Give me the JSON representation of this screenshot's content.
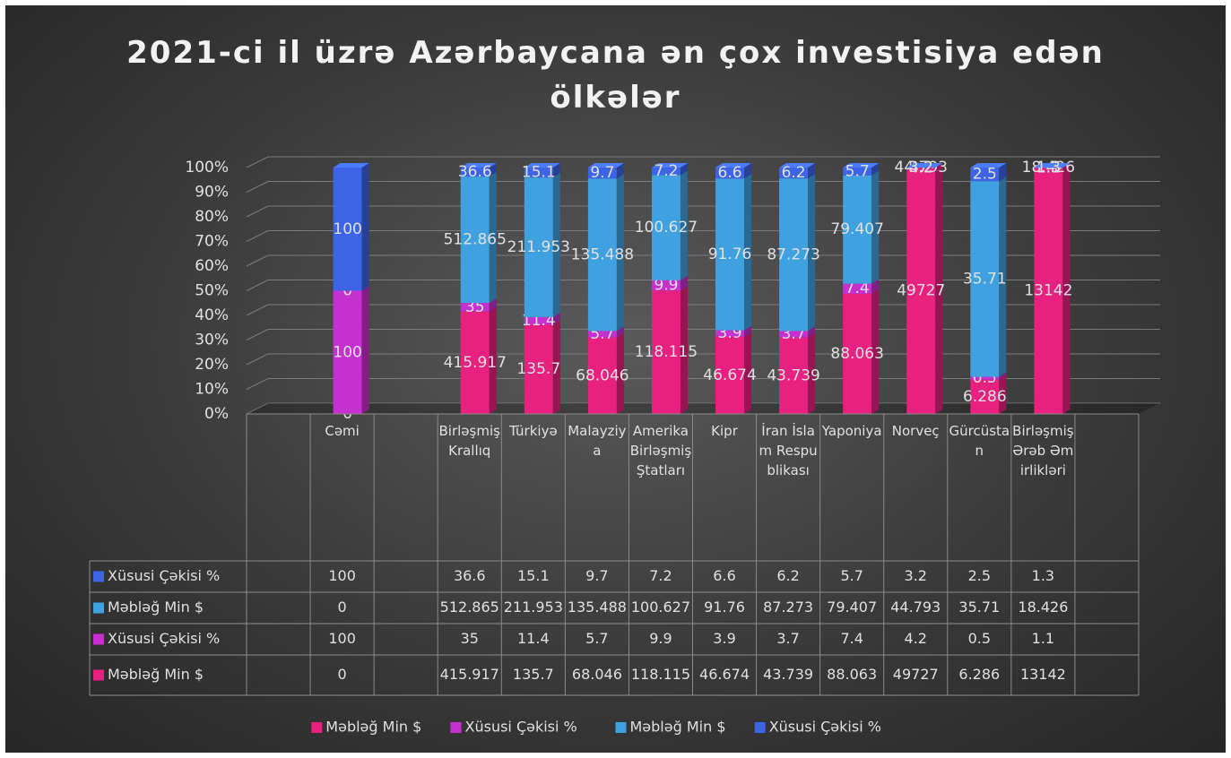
{
  "chart_data": {
    "type": "bar3d_stacked_percent",
    "title": "2021-ci il üzrə Azərbaycana ən çox investisiya edən ölkələr",
    "categories": [
      null,
      "Cəmi",
      null,
      "Birləşmiş Krallıq",
      "Türkiyə",
      "Malayziya",
      "Amerika Birləşmiş Ştatları",
      "Kipr",
      "İran İslam Respublikası",
      "Yaponiya",
      "Norveç",
      "Gürcüstan",
      "Birləşmiş Ərəb Əmirlikləri",
      null
    ],
    "series": [
      {
        "name": "Məbləğ Min $",
        "color": "#e8207f",
        "values": [
          null,
          0,
          null,
          415.917,
          135.7,
          68.046,
          118.115,
          46.674,
          43.739,
          88.063,
          49727,
          6.286,
          13142,
          null
        ]
      },
      {
        "name": "Xüsusi Çəkisi %",
        "color": "#c62fd0",
        "values": [
          null,
          100,
          null,
          35,
          11.4,
          5.7,
          9.9,
          3.9,
          3.7,
          7.4,
          4.2,
          0.5,
          1.1,
          null
        ]
      },
      {
        "name": "Məbləğ Min $",
        "color": "#3fa1e0",
        "values": [
          null,
          0,
          null,
          512.865,
          211.953,
          135.488,
          100.627,
          91.76,
          87.273,
          79.407,
          44.793,
          35.71,
          18.426,
          null
        ]
      },
      {
        "name": "Xüsusi Çəkisi %",
        "color": "#3d63e6",
        "values": [
          null,
          100,
          null,
          36.6,
          15.1,
          9.7,
          7.2,
          6.6,
          6.2,
          5.7,
          3.2,
          2.5,
          1.3,
          null
        ]
      }
    ],
    "ylim": [
      0,
      100
    ],
    "yticks": [
      {
        "value": 0,
        "label": "0%"
      },
      {
        "value": 10,
        "label": "10%"
      },
      {
        "value": 20,
        "label": "20%"
      },
      {
        "value": 30,
        "label": "30%"
      },
      {
        "value": 40,
        "label": "40%"
      },
      {
        "value": 50,
        "label": "50%"
      },
      {
        "value": 60,
        "label": "60%"
      },
      {
        "value": 70,
        "label": "70%"
      },
      {
        "value": 80,
        "label": "80%"
      },
      {
        "value": 90,
        "label": "90%"
      },
      {
        "value": 100,
        "label": "100%"
      }
    ],
    "grid": true,
    "legend": "bottom",
    "data_table": true
  }
}
